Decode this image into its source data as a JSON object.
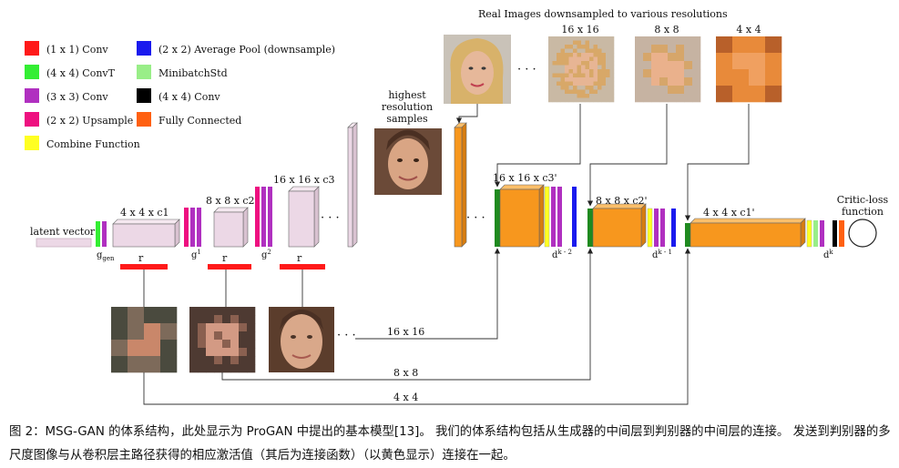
{
  "legend": [
    {
      "label": "(1 x 1) Conv",
      "color": "#ff1a1a"
    },
    {
      "label": "(4 x 4) ConvT",
      "color": "#33ee33"
    },
    {
      "label": "(3 x 3) Conv",
      "color": "#b030c0"
    },
    {
      "label": "(2 x 2) Upsample",
      "color": "#ee1080"
    },
    {
      "label": "Combine Function",
      "color": "#ffff22"
    },
    {
      "label": "(2 x 2) Average Pool (downsample)",
      "color": "#1a1aee"
    },
    {
      "label": "MinibatchStd",
      "color": "#99ee88"
    },
    {
      "label": "(4 x 4) Conv",
      "color": "#000000"
    },
    {
      "label": "Fully Connected",
      "color": "#ff6010"
    }
  ],
  "colors": {
    "generator_block": "#ecd8e6",
    "discriminator_block": "#f7971e",
    "conv_t": "#1f8a1f"
  },
  "generator": {
    "latent_label": "latent vector",
    "g_gen": "g",
    "g_gen_sub": "gen",
    "g1": "g",
    "g1_sup": "1",
    "g2": "g",
    "g2_sup": "2",
    "block1": "4 x 4 x c1",
    "block2": "8 x 8 x c2",
    "block3": "16 x 16 x c3",
    "r1": "r",
    "r2": "r",
    "r3": "r",
    "dots": "· · ·"
  },
  "real_images": {
    "title": "Real Images downsampled to various resolutions",
    "res16": "16 x 16",
    "res8": "8 x 8",
    "res4": "4 x 4",
    "dots": "· · ·"
  },
  "highest_res_label": "highest resolution samples",
  "discriminator": {
    "block1": "16 x 16 x c3'",
    "block2": "8 x 8 x c2'",
    "block3": "4 x 4 x c1'",
    "d1": "d",
    "d1_sup": "k - 2",
    "d2": "d",
    "d2_sup": "k - 1",
    "d3": "d",
    "d3_sup": "k",
    "dots": "· · ·",
    "critic_label": "Critic-loss function"
  },
  "connections": {
    "l16": "16 x 16",
    "l8": "8 x 8",
    "l4": "4 x 4",
    "dots": "· · ·"
  },
  "caption": "图 2：MSG-GAN 的体系结构，此处显示为 ProGAN 中提出的基本模型[13]。 我们的体系结构包括从生成器的中间层到判别器的中间层的连接。 发送到判别器的多尺度图像与从卷积层主路径获得的相应激活值（其后为连接函数）（以黄色显示）连接在一起。"
}
